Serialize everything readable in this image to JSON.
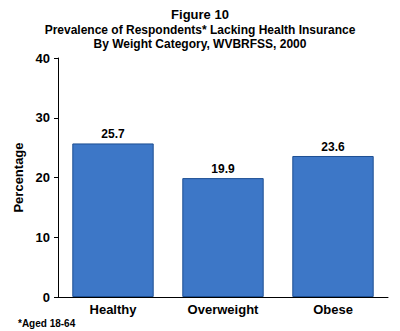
{
  "chart_data": {
    "type": "bar",
    "title": "Figure 10",
    "subtitle": "Prevalence of Respondents* Lacking Health Insurance\nBy Weight Category, WVBRFSS, 2000",
    "ylabel": "Percentage",
    "annotations": [
      "*Aged 18-64"
    ],
    "categories": [
      "Healthy",
      "Overweight",
      "Obese"
    ],
    "values": [
      25.7,
      19.9,
      23.6
    ],
    "color": "#3d77c7",
    "ylim": [
      0,
      40
    ],
    "yticks": [
      0,
      10,
      20,
      30,
      40
    ],
    "grid": false,
    "data_labels": true
  }
}
